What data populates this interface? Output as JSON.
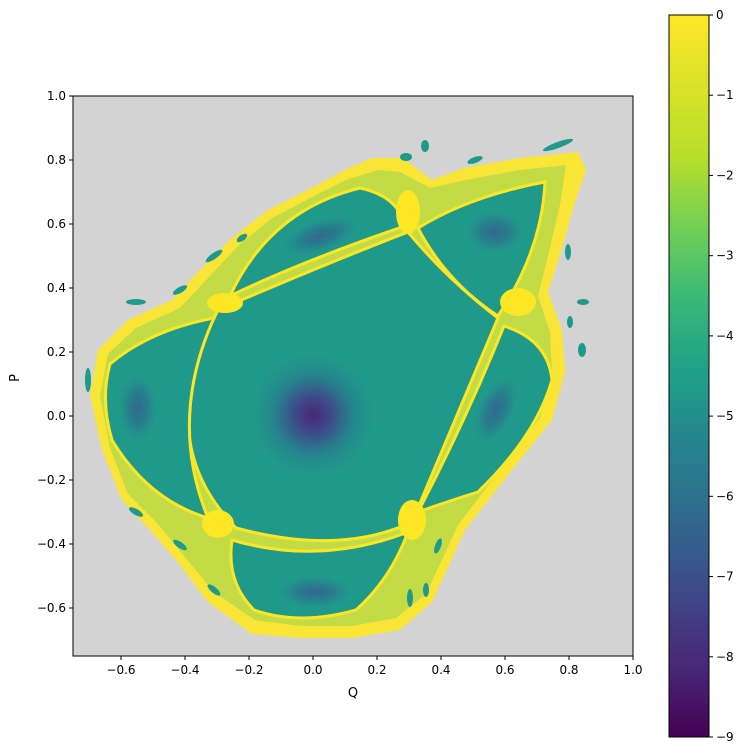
{
  "chart_data": {
    "type": "heatmap",
    "title": "",
    "xlabel": "Q",
    "ylabel": "P",
    "xlim": [
      -0.75,
      1.0
    ],
    "ylim": [
      -0.75,
      1.0
    ],
    "x_ticks": [
      -0.6,
      -0.4,
      -0.2,
      0.0,
      0.2,
      0.4,
      0.6,
      0.8,
      1.0
    ],
    "x_tick_labels": [
      "−0.6",
      "−0.4",
      "−0.2",
      "0.0",
      "0.2",
      "0.4",
      "0.6",
      "0.8",
      "1.0"
    ],
    "y_ticks": [
      -0.6,
      -0.4,
      -0.2,
      0.0,
      0.2,
      0.4,
      0.6,
      0.8,
      1.0
    ],
    "y_tick_labels": [
      "−0.6",
      "−0.4",
      "−0.2",
      "0.0",
      "0.2",
      "0.4",
      "0.6",
      "0.8",
      "1.0"
    ],
    "grid": false,
    "background_color": "#d3d3d3",
    "colormap": "viridis",
    "colorbar": {
      "range": [
        -9,
        0
      ],
      "ticks": [
        0,
        -1,
        -2,
        -3,
        -4,
        -5,
        -6,
        -7,
        -8,
        -9
      ],
      "tick_labels": [
        "0",
        "−1",
        "−2",
        "−3",
        "−4",
        "−5",
        "−6",
        "−7",
        "−8",
        "−9"
      ]
    },
    "features": {
      "central_minimum": {
        "q": 0.0,
        "p": 0.0,
        "value": -8.0
      },
      "islands": [
        {
          "q": -0.56,
          "p": 0.02,
          "value": -5.8
        },
        {
          "q": 0.56,
          "p": 0.02,
          "value": -5.8
        },
        {
          "q": 0.0,
          "p": -0.56,
          "value": -5.8
        },
        {
          "q": 0.0,
          "p": 0.56,
          "value": -5.8
        },
        {
          "q": 0.57,
          "p": 0.57,
          "value": -5.8
        }
      ],
      "separatrix_value": 0,
      "typical_value": -4.2
    }
  }
}
